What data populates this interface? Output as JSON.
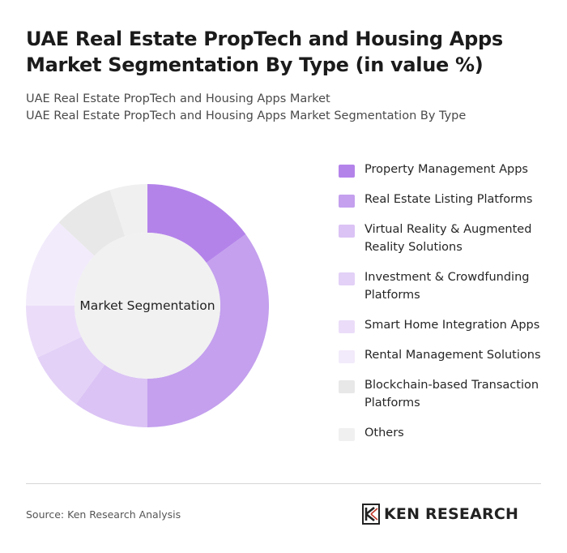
{
  "header": {
    "title": "UAE Real Estate PropTech and Housing Apps Market Segmentation By Type (in value %)",
    "subtitle_line1": "UAE Real Estate PropTech and Housing Apps Market",
    "subtitle_line2": "UAE Real Estate PropTech and Housing Apps Market Segmentation By Type"
  },
  "chart_data": {
    "type": "pie",
    "variant": "donut",
    "center_label": "Market Segmentation",
    "categories": [
      "Property Management Apps",
      "Real Estate Listing Platforms",
      "Virtual Reality & Augmented Reality Solutions",
      "Investment & Crowdfunding Platforms",
      "Smart Home Integration Apps",
      "Rental Management Solutions",
      "Blockchain-based Transaction Platforms",
      "Others"
    ],
    "values": [
      15,
      35,
      10,
      8,
      7,
      12,
      8,
      5
    ],
    "colors": [
      "#b483ea",
      "#c4a0ee",
      "#dbc3f5",
      "#e3d1f7",
      "#ebddf9",
      "#f2ebfb",
      "#e8e8e8",
      "#f0f0f0"
    ],
    "legend_placement": "right"
  },
  "footer": {
    "source": "Source: Ken Research Analysis",
    "logo_text": "KEN RESEARCH"
  }
}
